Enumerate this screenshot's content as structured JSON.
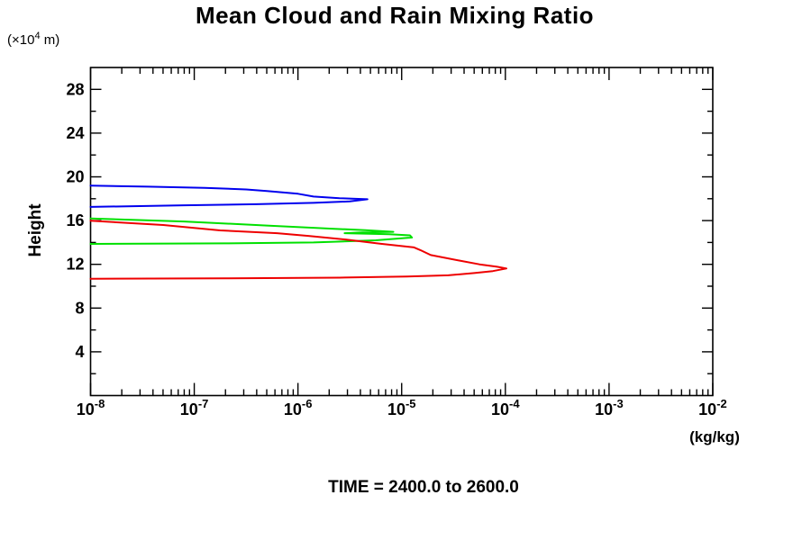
{
  "window": {
    "background": "#ffffff"
  },
  "chart_data": {
    "type": "line",
    "title": "Mean Cloud and Rain Mixing Ratio",
    "y_axis_units": {
      "prefix": "(×10",
      "exponent": "4",
      "suffix": " m)"
    },
    "ylabel": "Height",
    "x_units": "(kg/kg)",
    "caption": "TIME = 2400.0 to 2600.0",
    "axis_color": "#000000",
    "text_color": "#000000",
    "legend": "none",
    "grid": "off",
    "x_axis": {
      "scale": "log10",
      "min_exponent": -8,
      "max_exponent": -2,
      "tick_labels": [
        {
          "exp": -8,
          "base": "10",
          "sup": "-8"
        },
        {
          "exp": -7,
          "base": "10",
          "sup": "-7"
        },
        {
          "exp": -6,
          "base": "10",
          "sup": "-6"
        },
        {
          "exp": -5,
          "base": "10",
          "sup": "-5"
        },
        {
          "exp": -4,
          "base": "10",
          "sup": "-4"
        },
        {
          "exp": -3,
          "base": "10",
          "sup": "-3"
        },
        {
          "exp": -2,
          "base": "10",
          "sup": "-2"
        }
      ]
    },
    "y_axis": {
      "min": 0,
      "max": 30,
      "major_step": 4,
      "minor_step": 2,
      "tick_labels": [
        {
          "value": 28,
          "label": "28"
        },
        {
          "value": 24,
          "label": "24"
        },
        {
          "value": 20,
          "label": "20"
        },
        {
          "value": 16,
          "label": "16"
        },
        {
          "value": 12,
          "label": "12"
        },
        {
          "value": 8,
          "label": "8"
        },
        {
          "value": 4,
          "label": "4"
        }
      ]
    },
    "series": [
      {
        "name": "blue-curve",
        "color": "#0000ee",
        "points": [
          [
            -8.0,
            19.2
          ],
          [
            -7.45,
            19.1
          ],
          [
            -6.9,
            19.0
          ],
          [
            -6.5,
            18.85
          ],
          [
            -6.3,
            18.7
          ],
          [
            -6.0,
            18.45
          ],
          [
            -5.85,
            18.2
          ],
          [
            -5.6,
            18.05
          ],
          [
            -5.33,
            17.95
          ],
          [
            -5.5,
            17.75
          ],
          [
            -5.85,
            17.62
          ],
          [
            -6.4,
            17.5
          ],
          [
            -7.1,
            17.4
          ],
          [
            -8.0,
            17.25
          ]
        ]
      },
      {
        "name": "green-curve",
        "color": "#00e000",
        "points": [
          [
            -8.0,
            16.2
          ],
          [
            -7.1,
            15.92
          ],
          [
            -6.3,
            15.55
          ],
          [
            -5.65,
            15.25
          ],
          [
            -5.35,
            15.12
          ],
          [
            -5.08,
            14.97
          ],
          [
            -5.38,
            14.92
          ],
          [
            -5.55,
            14.85
          ],
          [
            -5.12,
            14.75
          ],
          [
            -4.92,
            14.65
          ],
          [
            -4.9,
            14.45
          ],
          [
            -5.25,
            14.2
          ],
          [
            -5.85,
            14.0
          ],
          [
            -6.7,
            13.92
          ],
          [
            -8.0,
            13.87
          ]
        ]
      },
      {
        "name": "red-curve",
        "color": "#ee0000",
        "points": [
          [
            -8.0,
            15.98
          ],
          [
            -7.3,
            15.6
          ],
          [
            -6.75,
            15.1
          ],
          [
            -6.2,
            14.85
          ],
          [
            -5.9,
            14.6
          ],
          [
            -5.55,
            14.28
          ],
          [
            -5.2,
            13.88
          ],
          [
            -4.88,
            13.55
          ],
          [
            -4.82,
            13.3
          ],
          [
            -4.72,
            12.85
          ],
          [
            -4.45,
            12.35
          ],
          [
            -4.25,
            12.0
          ],
          [
            -4.08,
            11.78
          ],
          [
            -3.99,
            11.62
          ],
          [
            -4.12,
            11.38
          ],
          [
            -4.3,
            11.2
          ],
          [
            -4.55,
            11.0
          ],
          [
            -4.95,
            10.88
          ],
          [
            -5.6,
            10.78
          ],
          [
            -6.7,
            10.72
          ],
          [
            -8.0,
            10.68
          ]
        ]
      }
    ]
  }
}
